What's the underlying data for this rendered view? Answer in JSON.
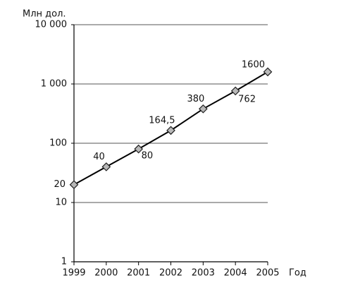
{
  "chart_data": {
    "type": "line",
    "y_label": "Млн дол.",
    "x_label": "Год",
    "x": [
      1999,
      2000,
      2001,
      2002,
      2003,
      2004,
      2005
    ],
    "values": [
      20,
      40,
      80,
      164.5,
      380,
      762,
      1600
    ],
    "value_labels": [
      "20",
      "40",
      "80",
      "164,5",
      "380",
      "762",
      "1600"
    ],
    "color": "#000000",
    "marker_color": "#b8b8b8",
    "xlim": [
      1999,
      2005
    ],
    "xticks": [
      1999,
      2000,
      2001,
      2002,
      2003,
      2004,
      2005
    ],
    "ylim": [
      1,
      10000
    ],
    "yscale": "log",
    "yticks": [
      1,
      10,
      100,
      {
        "value": 1000,
        "label": "1 000"
      },
      {
        "value": 10000,
        "label": "10 000"
      }
    ],
    "grid": true
  }
}
